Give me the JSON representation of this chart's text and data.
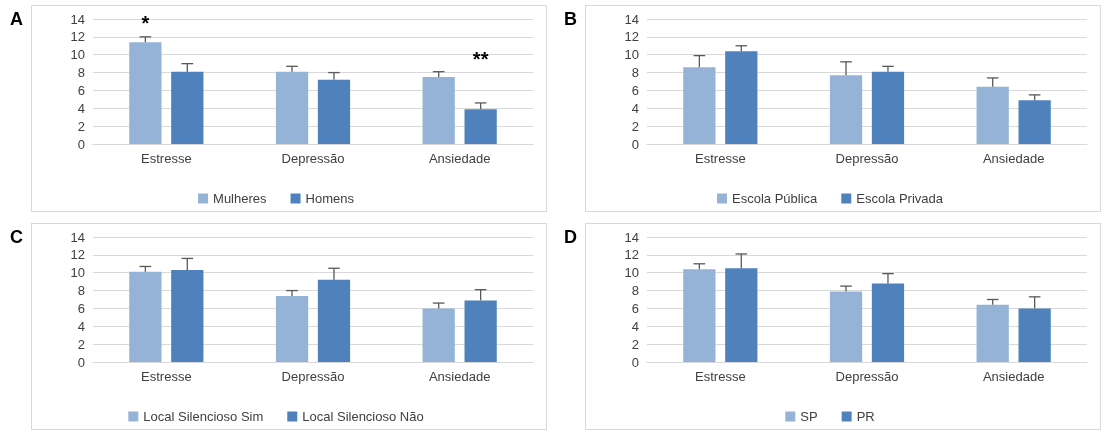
{
  "chart_data": [
    {
      "type": "bar",
      "title": "A",
      "categories": [
        "Estresse",
        "Depressão",
        "Ansiedade"
      ],
      "ylim": [
        0,
        14
      ],
      "yticks": [
        0,
        2,
        4,
        6,
        8,
        10,
        12,
        14
      ],
      "grid": "y",
      "legend": "bottom",
      "annotations": [
        {
          "text": "*",
          "x": "Estresse",
          "y": 11.4
        },
        {
          "text": "**",
          "x": "Ansiedade",
          "y": 3.9
        }
      ],
      "series": [
        {
          "name": "Mulheres",
          "color": "#95b3d7",
          "values": [
            11.4,
            8.1,
            7.5
          ],
          "errors": [
            [
              11.4,
              12.0
            ],
            [
              8.1,
              8.7
            ],
            [
              7.5,
              8.1
            ]
          ]
        },
        {
          "name": "Homens",
          "color": "#4f81bd",
          "values": [
            8.1,
            7.2,
            3.9
          ],
          "errors": [
            [
              8.1,
              9.0
            ],
            [
              7.2,
              8.0
            ],
            [
              3.9,
              4.6
            ]
          ]
        }
      ]
    },
    {
      "type": "bar",
      "title": "B",
      "categories": [
        "Estresse",
        "Depressão",
        "Ansiedade"
      ],
      "ylim": [
        0,
        14
      ],
      "yticks": [
        0,
        2,
        4,
        6,
        8,
        10,
        12,
        14
      ],
      "grid": "y",
      "legend": "bottom",
      "series": [
        {
          "name": "Escola Pública",
          "color": "#95b3d7",
          "values": [
            8.6,
            7.7,
            6.4
          ],
          "errors": [
            [
              8.6,
              9.9
            ],
            [
              7.7,
              9.2
            ],
            [
              6.4,
              7.4
            ]
          ]
        },
        {
          "name": "Escola Privada",
          "color": "#4f81bd",
          "values": [
            10.4,
            8.1,
            4.9
          ],
          "errors": [
            [
              10.4,
              11.0
            ],
            [
              8.1,
              8.7
            ],
            [
              4.9,
              5.5
            ]
          ]
        }
      ]
    },
    {
      "type": "bar",
      "title": "C",
      "categories": [
        "Estresse",
        "Depressão",
        "Ansiedade"
      ],
      "ylim": [
        0,
        14
      ],
      "yticks": [
        0,
        2,
        4,
        6,
        8,
        10,
        12,
        14
      ],
      "grid": "y",
      "legend": "bottom",
      "series": [
        {
          "name": "Local Silencioso Sim",
          "color": "#95b3d7",
          "values": [
            10.1,
            7.4,
            6.0
          ],
          "errors": [
            [
              10.1,
              10.7
            ],
            [
              7.4,
              8.0
            ],
            [
              6.0,
              6.6
            ]
          ]
        },
        {
          "name": "Local Silencioso Não",
          "color": "#4f81bd",
          "values": [
            10.3,
            9.2,
            6.9
          ],
          "errors": [
            [
              10.3,
              11.6
            ],
            [
              9.2,
              10.5
            ],
            [
              6.9,
              8.1
            ]
          ]
        }
      ]
    },
    {
      "type": "bar",
      "title": "D",
      "categories": [
        "Estresse",
        "Depressão",
        "Ansiedade"
      ],
      "ylim": [
        0,
        14
      ],
      "yticks": [
        0,
        2,
        4,
        6,
        8,
        10,
        12,
        14
      ],
      "grid": "y",
      "legend": "bottom",
      "series": [
        {
          "name": "SP",
          "color": "#95b3d7",
          "values": [
            10.4,
            7.9,
            6.4
          ],
          "errors": [
            [
              10.4,
              11.0
            ],
            [
              7.9,
              8.5
            ],
            [
              6.4,
              7.0
            ]
          ]
        },
        {
          "name": "PR",
          "color": "#4f81bd",
          "values": [
            10.5,
            8.8,
            6.0
          ],
          "errors": [
            [
              10.5,
              12.1
            ],
            [
              8.8,
              9.9
            ],
            [
              6.0,
              7.3
            ]
          ]
        }
      ]
    }
  ]
}
